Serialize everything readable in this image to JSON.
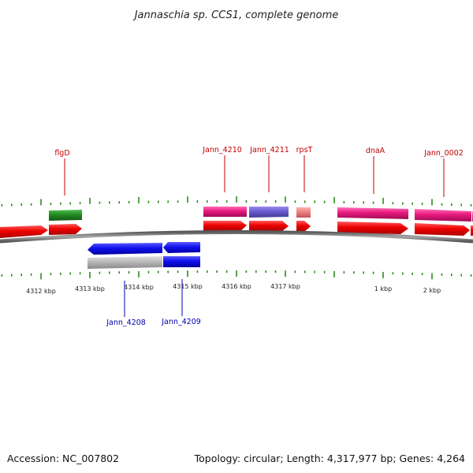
{
  "title": "Jannaschia sp. CCS1, complete genome",
  "footer": {
    "accession": "Accession: NC_007802",
    "summary": "Topology: circular; Length: 4,317,977 bp; Genes: 4,264"
  },
  "colors": {
    "tick": "#2e8b1e",
    "backbone": "#808080",
    "label_forward": "#c00000",
    "label_reverse": "#0000b0",
    "cds_forward": "#ee0000",
    "cds_reverse": "#1010ee",
    "gene_magenta": "#e8197e",
    "gene_green": "#228b22",
    "gene_purple": "#6a5acd",
    "gene_salmon": "#f08080",
    "gene_grey": "#b8b8b8"
  },
  "tick_labels": [
    "4312 kbp",
    "4313 kbp",
    "4314 kbp",
    "4315 kbp",
    "4316 kbp",
    "4317 kbp",
    "1 kbp",
    "2 kbp"
  ],
  "gene_labels_forward": [
    "flgD",
    "Jann_4210",
    "Jann_4211",
    "rpsT",
    "dnaA",
    "Jann_0002"
  ],
  "gene_labels_reverse": [
    "Jann_4208",
    "Jann_4209"
  ]
}
